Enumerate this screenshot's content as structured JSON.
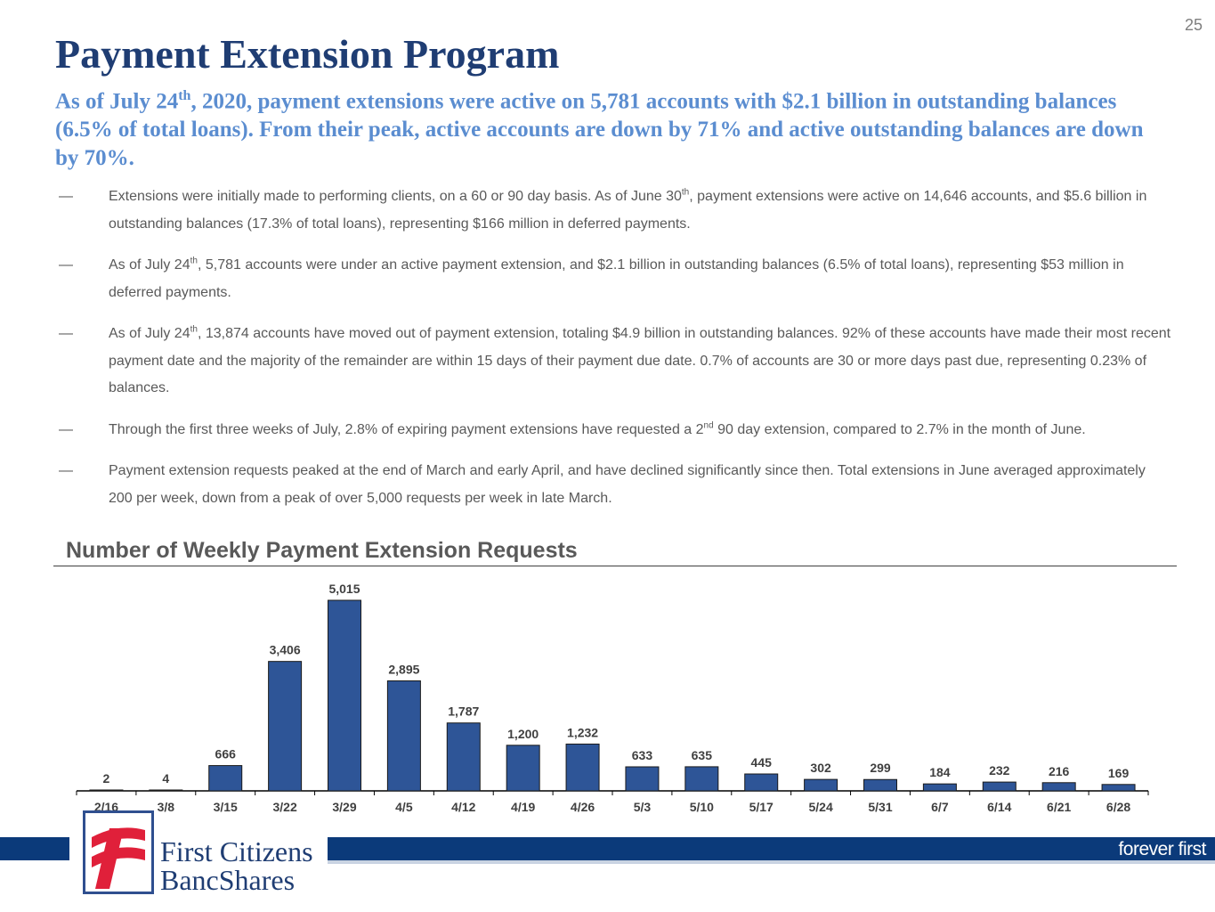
{
  "page_number": "25",
  "title": "Payment Extension Program",
  "subtitle": {
    "pre": "As of July 24",
    "sup": "th",
    "post": ", 2020, payment extensions were active on 5,781 accounts with $2.1 billion in outstanding balances (6.5% of total loans).  From their peak, active accounts are down by 71%  and active outstanding balances are down by 70%."
  },
  "bullets": [
    {
      "dash": "—",
      "pre": "Extensions were initially made to performing clients, on a 60 or 90 day basis.  As of June 30",
      "sup": "th",
      "post": ", payment extensions were active on 14,646 accounts, and $5.6 billion in outstanding balances (17.3% of total loans), representing $166 million in deferred payments."
    },
    {
      "dash": "—",
      "pre": "As of July 24",
      "sup": "th",
      "post": ", 5,781 accounts were under an active payment extension, and $2.1 billion in outstanding balances (6.5% of total loans), representing $53 million in deferred payments."
    },
    {
      "dash": "—",
      "pre": "As of July 24",
      "sup": "th",
      "post": ", 13,874 accounts have moved out of payment extension, totaling $4.9 billion in outstanding balances.  92% of these accounts have made their most recent payment date and the majority of the remainder are within 15 days of their payment due date.  0.7% of accounts are 30 or more days past due, representing 0.23% of balances."
    },
    {
      "dash": "—",
      "pre": "Through the first three weeks of July, 2.8% of expiring payment extensions have requested a 2",
      "sup": "nd",
      "post": " 90 day extension, compared to 2.7% in the month of June."
    },
    {
      "dash": "—",
      "pre": "Payment extension requests peaked at the end of March and early April, and have declined significantly since then.  Total extensions in June averaged approximately 200 per week, down from a peak of over 5,000 requests per week in late March.",
      "sup": "",
      "post": ""
    }
  ],
  "chart_data": {
    "type": "bar",
    "title": "Number of Weekly Payment Extension Requests",
    "xlabel": "",
    "ylabel": "",
    "categories": [
      "2/16",
      "3/8",
      "3/15",
      "3/22",
      "3/29",
      "4/5",
      "4/12",
      "4/19",
      "4/26",
      "5/3",
      "5/10",
      "5/17",
      "5/24",
      "5/31",
      "6/7",
      "6/14",
      "6/21",
      "6/28"
    ],
    "values": [
      2,
      4,
      666,
      3406,
      5015,
      2895,
      1787,
      1200,
      1232,
      633,
      635,
      445,
      302,
      299,
      184,
      232,
      216,
      169
    ],
    "data_labels": [
      "2",
      "4",
      "666",
      "3,406",
      "5,015",
      "2,895",
      "1,787",
      "1,200",
      "1,232",
      "633",
      "635",
      "445",
      "302",
      "299",
      "184",
      "232",
      "216",
      "169"
    ],
    "ylim": [
      0,
      5015
    ],
    "grid": false,
    "legend": "none",
    "bar_color": "#2e5597"
  },
  "footer": {
    "tagline": "forever first",
    "company_line1": "First Citizens",
    "company_line2": "BancShares"
  },
  "colors": {
    "title": "#1f3d73",
    "subtitle": "#5b8dd0",
    "brand_navy": "#0b3a7a",
    "logo_red": "#e0203a"
  }
}
